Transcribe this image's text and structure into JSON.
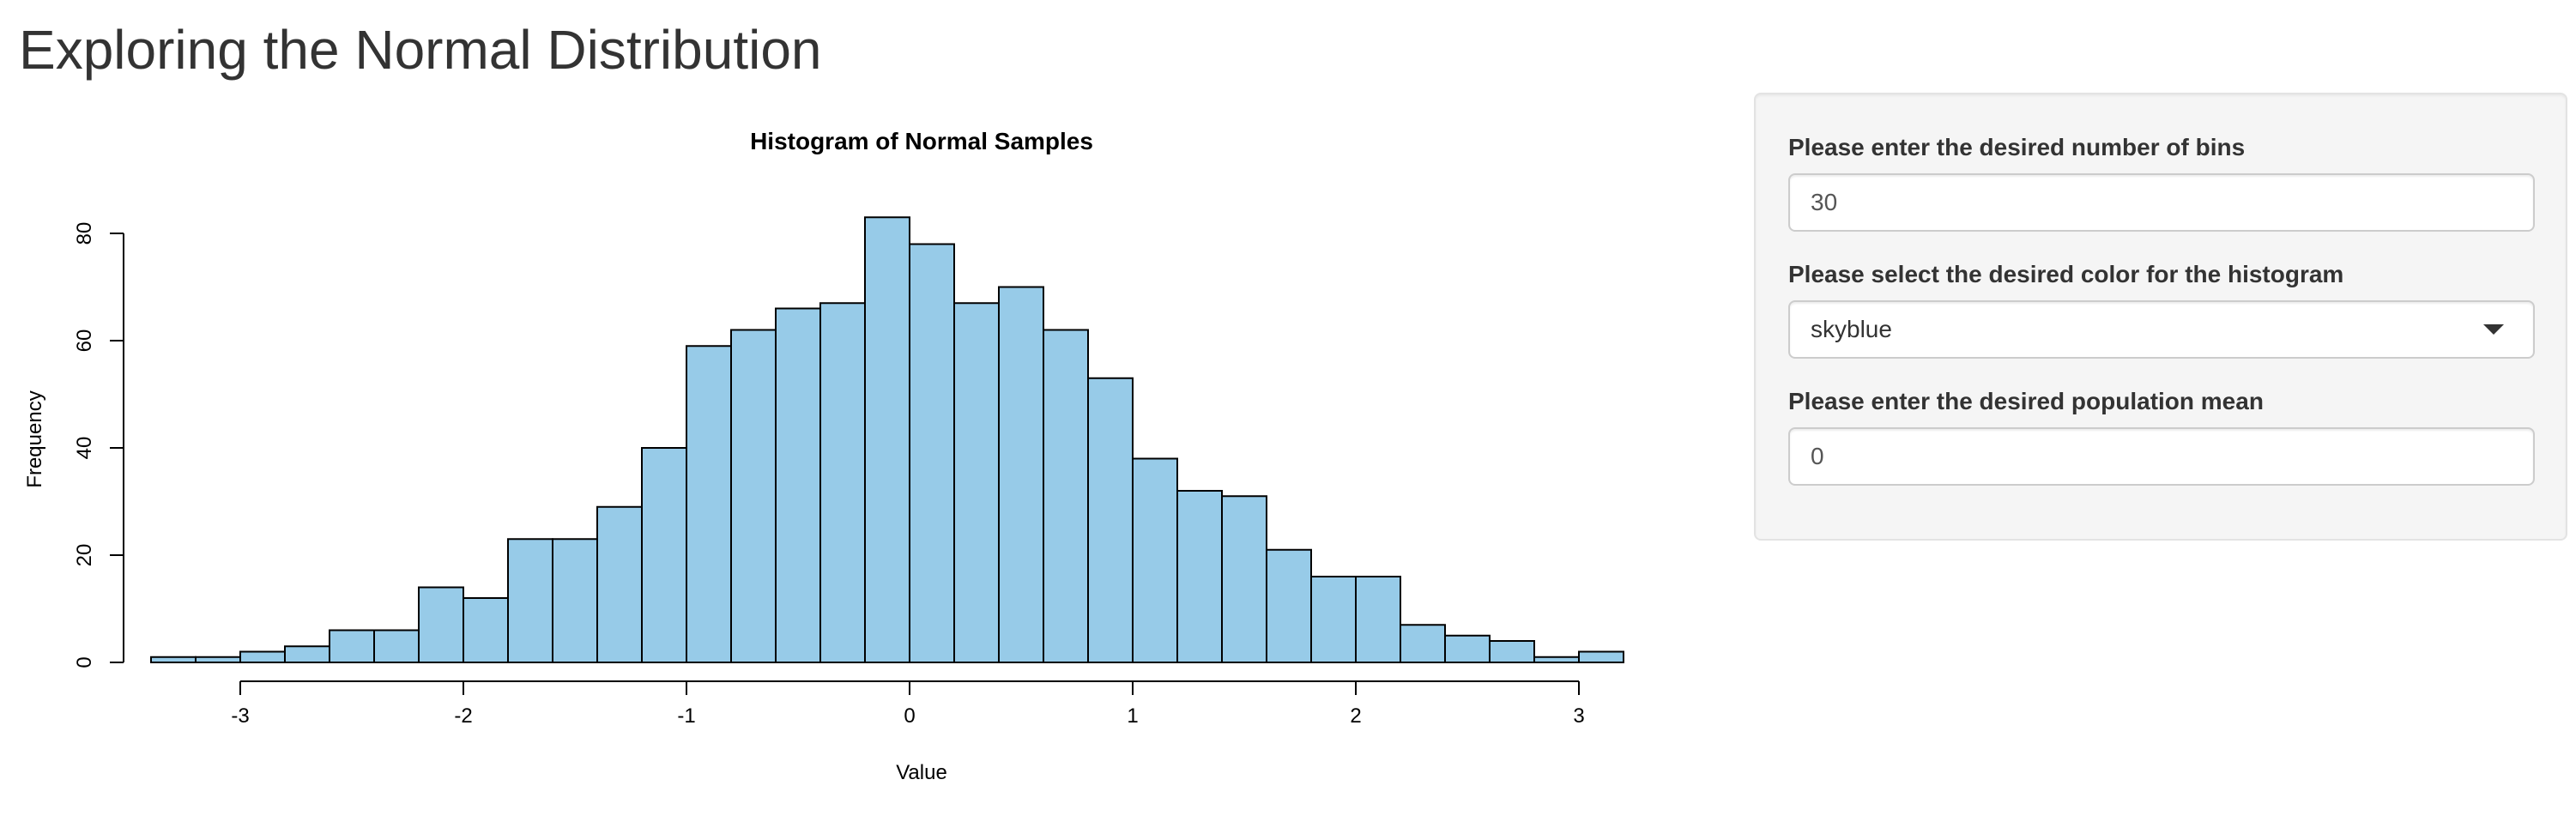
{
  "page": {
    "title": "Exploring the Normal Distribution"
  },
  "sidebar": {
    "bins_label": "Please enter the desired number of bins",
    "bins_value": "30",
    "color_label": "Please select the desired color for the histogram",
    "color_value": "skyblue",
    "mean_label": "Please enter the desired population mean",
    "mean_value": "0"
  },
  "chart_data": {
    "type": "bar",
    "title": "Histogram of Normal Samples",
    "xlabel": "Value",
    "ylabel": "Frequency",
    "bin_width": 0.2,
    "bin_edges": [
      -3.4,
      -3.2,
      -3.0,
      -2.8,
      -2.6,
      -2.4,
      -2.2,
      -2.0,
      -1.8,
      -1.6,
      -1.4,
      -1.2,
      -1.0,
      -0.8,
      -0.6,
      -0.4,
      -0.2,
      0.0,
      0.2,
      0.4,
      0.6,
      0.8,
      1.0,
      1.2,
      1.4,
      1.6,
      1.8,
      2.0,
      2.2,
      2.4,
      2.6,
      2.8,
      3.0,
      3.2
    ],
    "values": [
      1,
      1,
      2,
      3,
      6,
      6,
      14,
      12,
      23,
      23,
      29,
      40,
      59,
      62,
      66,
      67,
      83,
      78,
      67,
      70,
      62,
      53,
      38,
      32,
      31,
      21,
      16,
      16,
      7,
      5,
      4,
      1,
      2
    ],
    "x_ticks": [
      -3,
      -2,
      -1,
      0,
      1,
      2,
      3
    ],
    "y_ticks": [
      0,
      20,
      40,
      60,
      80
    ],
    "xlim": [
      -3.4,
      3.2
    ],
    "ylim": [
      0,
      83
    ],
    "grid": false,
    "bar_color": "#87ceeb",
    "bar_border_color": "#000000"
  }
}
